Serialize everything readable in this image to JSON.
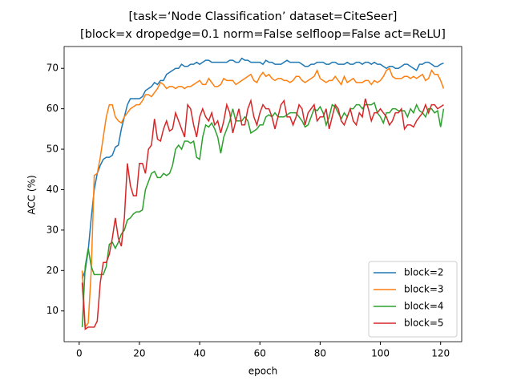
{
  "chart_data": {
    "type": "line",
    "title": [
      "[task=‘Node Classification’ dataset=CiteSeer]",
      "[block=x dropedge=0.1 norm=False selfloop=False act=ReLU]"
    ],
    "x_label": "epoch",
    "y_label": "ACC (%)",
    "xlim": [
      -5,
      127
    ],
    "ylim": [
      2.4,
      75.4
    ],
    "xticks": [
      0,
      20,
      40,
      60,
      80,
      100,
      120
    ],
    "yticks": [
      10,
      20,
      30,
      40,
      50,
      60,
      70
    ],
    "legend_position": "lower right",
    "x": [
      1,
      2,
      3,
      4,
      5,
      6,
      7,
      8,
      9,
      10,
      11,
      12,
      13,
      14,
      15,
      16,
      17,
      18,
      19,
      20,
      21,
      22,
      23,
      24,
      25,
      26,
      27,
      28,
      29,
      30,
      31,
      32,
      33,
      34,
      35,
      36,
      37,
      38,
      39,
      40,
      41,
      42,
      43,
      44,
      45,
      46,
      47,
      48,
      49,
      50,
      51,
      52,
      53,
      54,
      55,
      56,
      57,
      58,
      59,
      60,
      61,
      62,
      63,
      64,
      65,
      66,
      67,
      68,
      69,
      70,
      71,
      72,
      73,
      74,
      75,
      76,
      77,
      78,
      79,
      80,
      81,
      82,
      83,
      84,
      85,
      86,
      87,
      88,
      89,
      90,
      91,
      92,
      93,
      94,
      95,
      96,
      97,
      98,
      99,
      100,
      101,
      102,
      103,
      104,
      105,
      106,
      107,
      108,
      109,
      110,
      111,
      112,
      113,
      114,
      115,
      116,
      117,
      118,
      119,
      120,
      121
    ],
    "series": [
      {
        "name": "block=2",
        "color": "#1f77b4",
        "values": [
          18,
          20,
          25,
          33,
          40,
          44,
          46,
          47.5,
          48,
          48,
          48.5,
          50.5,
          51,
          55,
          58,
          61,
          62.5,
          62.5,
          62.5,
          62.5,
          63,
          64.5,
          65,
          65.5,
          66.5,
          66,
          67,
          67,
          68.5,
          69,
          69.5,
          70,
          70,
          71,
          70.5,
          70.5,
          71,
          71,
          71.5,
          71,
          71.5,
          72,
          72,
          71.5,
          71.5,
          71.5,
          71.5,
          71.5,
          71.5,
          72,
          72,
          71.5,
          71.5,
          72.5,
          72,
          72,
          71.5,
          71.5,
          71.5,
          71.5,
          71,
          72,
          71.5,
          71.5,
          71,
          71,
          71,
          71.5,
          72,
          71.5,
          71.5,
          71.5,
          71.5,
          71,
          70.5,
          70.5,
          71,
          71,
          71.5,
          71.5,
          71.5,
          71,
          71,
          71.5,
          71.5,
          71,
          71,
          71,
          71.5,
          71,
          71,
          71.5,
          71.5,
          71,
          71.5,
          71.5,
          71,
          71.5,
          71,
          71,
          70.5,
          70,
          70.5,
          70.5,
          70,
          70,
          70.5,
          71,
          71,
          70.5,
          70,
          69.5,
          71,
          71,
          71.5,
          71.5,
          71,
          70.5,
          70.5,
          71,
          71.3
        ]
      },
      {
        "name": "block=3",
        "color": "#ff7f0e",
        "values": [
          20,
          6,
          7,
          20,
          43.5,
          44,
          48,
          53,
          58,
          61,
          61,
          58,
          57,
          56.5,
          58,
          59,
          60,
          60.5,
          61,
          61,
          62,
          63.5,
          63.5,
          63,
          64,
          65,
          66.5,
          66,
          65,
          65.5,
          65.5,
          65,
          65.5,
          65.5,
          65,
          65.5,
          65.5,
          66,
          66.5,
          67,
          66,
          66,
          67.5,
          66.5,
          65.5,
          65.5,
          66,
          67.5,
          67,
          67,
          67,
          66,
          66.5,
          67,
          67.5,
          68,
          68.5,
          67,
          66.5,
          68,
          69,
          68,
          68.5,
          67.5,
          67,
          67.5,
          67.5,
          67,
          67,
          66.5,
          67,
          68,
          68,
          67,
          66.5,
          67,
          67.5,
          68,
          69.5,
          67.5,
          67,
          66.5,
          67,
          67,
          68,
          67,
          66,
          68,
          66.5,
          67,
          67.5,
          66.5,
          66.5,
          66.5,
          67,
          67,
          66,
          67,
          66.5,
          67,
          68,
          69.5,
          70,
          68,
          67.5,
          67.5,
          67.5,
          68,
          68,
          67.5,
          68,
          67.5,
          68,
          68.5,
          67,
          67.5,
          69.5,
          68.5,
          68.5,
          67,
          65
        ]
      },
      {
        "name": "block=4",
        "color": "#2ca02c",
        "values": [
          6,
          21,
          25.5,
          21,
          19,
          19,
          19,
          19,
          21,
          26.5,
          27,
          25.5,
          27,
          29,
          30,
          32.5,
          33,
          34,
          34.5,
          34.5,
          35,
          40,
          42,
          44,
          44.5,
          43,
          43,
          44,
          43.5,
          44,
          46,
          50,
          51,
          50,
          52,
          52,
          51.5,
          52,
          48,
          47.5,
          53,
          56,
          55.5,
          56.5,
          55,
          53,
          49,
          53,
          55,
          57,
          60,
          57,
          57,
          57,
          58,
          57,
          54,
          54.5,
          55,
          56,
          56,
          58,
          58.5,
          58,
          59,
          58,
          58,
          58,
          58.5,
          59,
          59,
          59,
          58,
          57,
          55.5,
          56,
          58,
          60,
          59.5,
          60.5,
          59,
          56,
          58,
          61,
          60.5,
          59,
          57.5,
          59,
          58,
          60,
          60,
          61,
          61,
          60,
          61,
          61,
          61,
          61.5,
          59,
          58,
          56.5,
          59,
          59,
          60,
          60,
          59.5,
          59.5,
          59.5,
          58,
          60,
          59,
          61,
          59.5,
          59,
          58,
          60,
          60,
          59,
          59.5,
          55.5,
          60
        ]
      },
      {
        "name": "block=5",
        "color": "#d62728",
        "values": [
          17,
          5.5,
          6,
          6,
          6,
          7.5,
          17,
          22,
          22,
          24,
          28,
          33,
          28,
          26,
          33,
          46.5,
          41,
          38.5,
          38.5,
          46.5,
          46.5,
          44,
          50,
          51,
          57.5,
          52.5,
          52,
          55,
          57,
          54.5,
          55,
          59,
          57,
          55,
          53,
          61,
          60,
          56,
          53,
          58,
          60,
          58,
          57,
          59,
          56,
          57,
          54,
          57,
          61,
          59,
          54,
          57,
          60,
          56,
          56,
          60,
          62,
          58,
          56,
          59,
          61,
          60,
          60,
          58,
          55,
          58,
          61,
          62,
          58,
          58,
          56,
          58,
          61,
          60,
          56,
          59,
          60,
          61,
          57,
          58,
          58,
          60,
          55,
          58,
          61,
          60,
          57,
          56,
          58,
          60,
          57,
          56,
          59,
          58,
          62.5,
          60,
          57,
          59,
          59,
          60,
          59,
          58,
          56,
          57,
          59,
          59,
          60,
          55,
          56,
          56,
          55.5,
          57,
          58,
          59,
          61,
          59,
          61,
          61,
          60,
          60.5,
          61
        ]
      }
    ]
  }
}
